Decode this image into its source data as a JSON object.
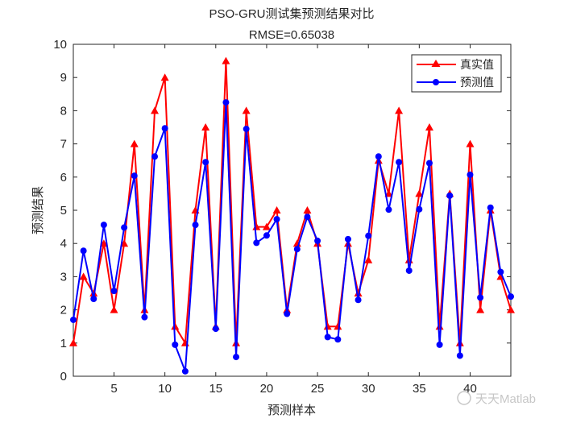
{
  "chart_data": {
    "type": "line",
    "title": "PSO-GRU测试集预测结果对比",
    "subtitle": "RMSE=0.65038",
    "xlabel": "预测样本",
    "ylabel": "预测结果",
    "xlim": [
      1,
      44
    ],
    "ylim": [
      0,
      10
    ],
    "xticks": [
      5,
      10,
      15,
      20,
      25,
      30,
      35,
      40
    ],
    "yticks": [
      0,
      1,
      2,
      3,
      4,
      5,
      6,
      7,
      8,
      9,
      10
    ],
    "grid": false,
    "legend_placement": "top-right",
    "x": [
      1,
      2,
      3,
      4,
      5,
      6,
      7,
      8,
      9,
      10,
      11,
      12,
      13,
      14,
      15,
      16,
      17,
      18,
      19,
      20,
      21,
      22,
      23,
      24,
      25,
      26,
      27,
      28,
      29,
      30,
      31,
      32,
      33,
      34,
      35,
      36,
      37,
      38,
      39,
      40,
      41,
      42,
      43,
      44
    ],
    "series": [
      {
        "name": "真实值",
        "color": "#ff0000",
        "marker": "triangle",
        "values": [
          1,
          3,
          2.5,
          4,
          2,
          4,
          7,
          2,
          8,
          9,
          1.5,
          1,
          5,
          7.5,
          1.5,
          9.5,
          1,
          8,
          4.5,
          4.5,
          5,
          2,
          4,
          5,
          4,
          1.5,
          1.5,
          4,
          2.5,
          3.5,
          6.5,
          5.5,
          8,
          3.5,
          5.5,
          7.5,
          1.5,
          5.5,
          1,
          7,
          2,
          5,
          3,
          2
        ]
      },
      {
        "name": "预测值",
        "color": "#0000ff",
        "marker": "circle",
        "values": [
          1.7,
          3.78,
          2.33,
          4.56,
          2.57,
          4.48,
          6.04,
          1.78,
          6.62,
          7.47,
          0.95,
          0.15,
          4.56,
          6.45,
          1.43,
          8.25,
          0.58,
          7.45,
          4.02,
          4.24,
          4.73,
          1.88,
          3.83,
          4.8,
          4.08,
          1.18,
          1.11,
          4.13,
          2.3,
          4.23,
          6.62,
          5.02,
          6.45,
          3.18,
          5.03,
          6.42,
          0.95,
          5.44,
          0.62,
          6.07,
          2.37,
          5.08,
          3.14,
          2.4
        ]
      }
    ]
  },
  "watermark": "天天Matlab"
}
